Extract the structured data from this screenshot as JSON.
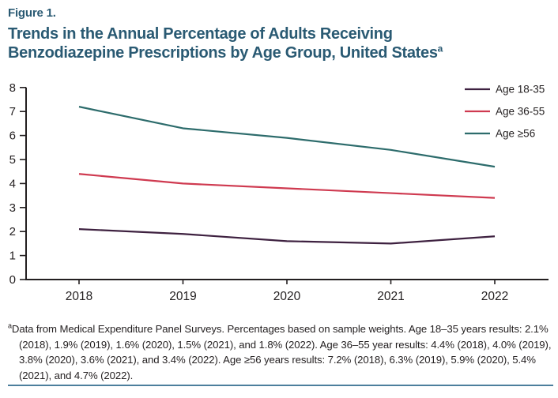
{
  "header": {
    "figure_label": "Figure 1.",
    "title_lines": [
      "Trends in the Annual Percentage of Adults Receiving",
      "Benzodiazepine Prescriptions by Age Group, United States"
    ],
    "title_superscript": "a"
  },
  "colors": {
    "title": "#2a5a73",
    "axis": "#231f20",
    "text": "#231f20",
    "divider": "#4c7f9d"
  },
  "chart_data": {
    "type": "line",
    "title": "Trends in the Annual Percentage of Adults Receiving Benzodiazepine Prescriptions by Age Group, United States",
    "categories": [
      "2018",
      "2019",
      "2020",
      "2021",
      "2022"
    ],
    "series": [
      {
        "name": "Age 18-35",
        "values": [
          2.1,
          1.9,
          1.6,
          1.5,
          1.8
        ],
        "color": "#3e2140"
      },
      {
        "name": "Age 36-55",
        "values": [
          4.4,
          4.0,
          3.8,
          3.6,
          3.4
        ],
        "color": "#cf3a50"
      },
      {
        "name": "Age ≥56",
        "values": [
          7.2,
          6.3,
          5.9,
          5.4,
          4.7
        ],
        "color": "#2d6c6c"
      }
    ],
    "xlabel": "",
    "ylabel": "",
    "ylim": [
      0,
      8
    ],
    "yticks": [
      "0",
      "1",
      "2",
      "3",
      "4",
      "5",
      "6",
      "7",
      "8"
    ],
    "grid": false,
    "legend_position": "top-right"
  },
  "footnote": {
    "marker": "a",
    "text": "Data from Medical Expenditure Panel Surveys. Percentages based on sample weights. Age 18–35 years results: 2.1% (2018), 1.9% (2019), 1.6% (2020), 1.5% (2021), and 1.8% (2022). Age 36–55 year results: 4.4% (2018), 4.0% (2019), 3.8% (2020), 3.6% (2021), and 3.4% (2022). Age ≥56 years results: 7.2% (2018), 6.3% (2019), 5.9% (2020), 5.4% (2021), and 4.7% (2022)."
  }
}
